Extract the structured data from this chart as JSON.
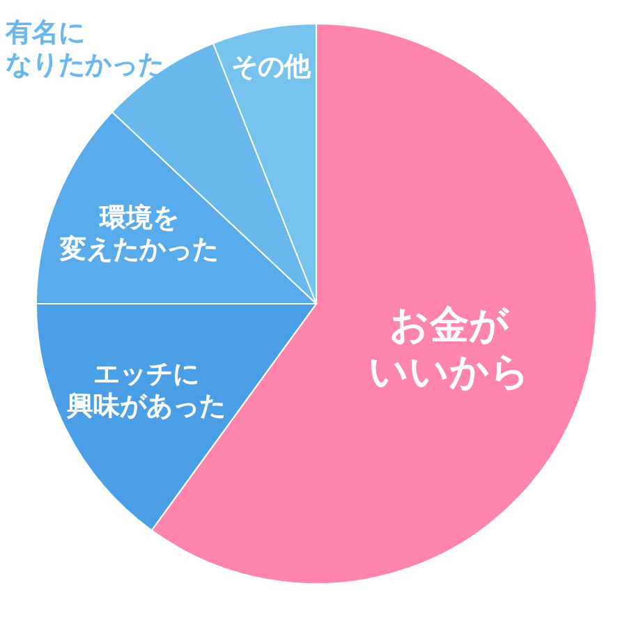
{
  "chart_data": {
    "type": "pie",
    "categories": [
      "お金がいいから",
      "エッチに興味があった",
      "環境を変えたかった",
      "有名になりたかった",
      "その他"
    ],
    "values": [
      60,
      15,
      12,
      7,
      6
    ],
    "colors": [
      "#ff85ad",
      "#4a9fe6",
      "#58abea",
      "#68b8ee",
      "#76c3f0"
    ]
  }
}
